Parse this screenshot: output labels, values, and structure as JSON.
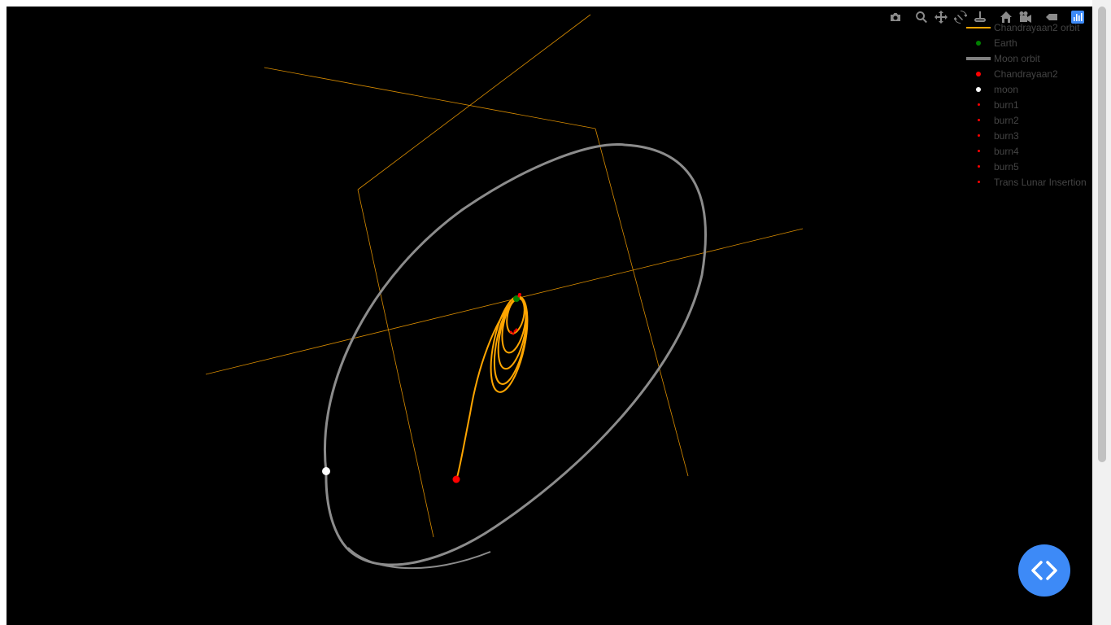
{
  "modebar": {
    "buttons": [
      {
        "name": "camera-icon",
        "title": "Download plot as a png"
      },
      {
        "name": "zoom-icon",
        "title": "Zoom"
      },
      {
        "name": "pan-icon",
        "title": "Pan"
      },
      {
        "name": "orbit-rotation-icon",
        "title": "Orbital rotation"
      },
      {
        "name": "turntable-rotation-icon",
        "title": "Turntable rotation"
      },
      {
        "name": "home-icon",
        "title": "Reset camera to default"
      },
      {
        "name": "camera-last-save-icon",
        "title": "Reset camera to last save"
      },
      {
        "name": "hover-tag-icon",
        "title": "Toggle show closest data on hover"
      },
      {
        "name": "plotly-logo-icon",
        "title": "Produced with Plotly"
      }
    ]
  },
  "legend": {
    "items": [
      {
        "label": "Chandrayaan2 orbit",
        "kind": "line",
        "color": "#ffa500"
      },
      {
        "label": "Earth",
        "kind": "dot",
        "color": "#008000"
      },
      {
        "label": "Moon orbit",
        "kind": "thick",
        "color": "#808080"
      },
      {
        "label": "Chandrayaan2",
        "kind": "dot",
        "color": "#ff0000"
      },
      {
        "label": "moon",
        "kind": "dot",
        "color": "#ffffff"
      },
      {
        "label": "burn1",
        "kind": "tiny",
        "color": "#ff0000"
      },
      {
        "label": "burn2",
        "kind": "tiny",
        "color": "#ff0000"
      },
      {
        "label": "burn3",
        "kind": "tiny",
        "color": "#ff0000"
      },
      {
        "label": "burn4",
        "kind": "tiny",
        "color": "#ff0000"
      },
      {
        "label": "burn5",
        "kind": "tiny",
        "color": "#ff0000"
      },
      {
        "label": "Trans Lunar Insertion",
        "kind": "tiny",
        "color": "#ff0000"
      }
    ]
  },
  "chart_data": {
    "type": "scatter3d",
    "title": "",
    "background": "#000000",
    "axes": {
      "x": {
        "label": "",
        "ticks": false
      },
      "y": {
        "label": "",
        "ticks": false
      },
      "z": {
        "label": "",
        "ticks": false
      },
      "color": "#ffa500"
    },
    "series": [
      {
        "name": "Chandrayaan2 orbit",
        "mode": "lines",
        "color": "#ffa500",
        "description": "five nested elliptical Earth-bound orbits plus trans-lunar trajectory"
      },
      {
        "name": "Earth",
        "mode": "markers",
        "color": "#008000",
        "point": "origin"
      },
      {
        "name": "Moon orbit",
        "mode": "lines",
        "color": "#808080",
        "description": "large elliptical lunar orbit around Earth"
      },
      {
        "name": "Chandrayaan2",
        "mode": "markers",
        "color": "#ff0000",
        "description": "current spacecraft position at end of trajectory"
      },
      {
        "name": "moon",
        "mode": "markers",
        "color": "#ffffff",
        "description": "moon position on its orbit"
      },
      {
        "name": "burn1",
        "mode": "markers",
        "color": "#ff0000"
      },
      {
        "name": "burn2",
        "mode": "markers",
        "color": "#ff0000"
      },
      {
        "name": "burn3",
        "mode": "markers",
        "color": "#ff0000"
      },
      {
        "name": "burn4",
        "mode": "markers",
        "color": "#ff0000"
      },
      {
        "name": "burn5",
        "mode": "markers",
        "color": "#ff0000"
      },
      {
        "name": "Trans Lunar Insertion",
        "mode": "markers",
        "color": "#ff0000"
      }
    ],
    "legend_position": "top-right"
  },
  "code_button": {
    "icon": "code-brackets-icon",
    "color": "#3d8af7"
  }
}
